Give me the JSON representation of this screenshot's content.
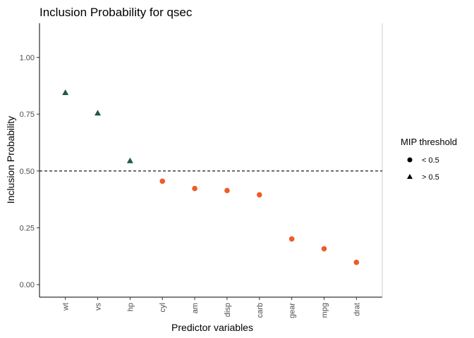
{
  "chart_data": {
    "type": "scatter",
    "title": "Inclusion Probability for qsec",
    "xlabel": "Predictor variables",
    "ylabel": "Inclusion Probability",
    "categories": [
      "wt",
      "vs",
      "hp",
      "cyl",
      "am",
      "disp",
      "carb",
      "gear",
      "mpg",
      "drat"
    ],
    "values": [
      0.845,
      0.755,
      0.545,
      0.455,
      0.423,
      0.414,
      0.395,
      0.201,
      0.158,
      0.098
    ],
    "groups": [
      "> 0.5",
      "> 0.5",
      "> 0.5",
      "< 0.5",
      "< 0.5",
      "< 0.5",
      "< 0.5",
      "< 0.5",
      "< 0.5",
      "< 0.5"
    ],
    "ylim": [
      -0.055,
      1.15
    ],
    "yticks": [
      0.0,
      0.25,
      0.5,
      0.75,
      1.0
    ],
    "ytick_labels": [
      "0.00",
      "0.25",
      "0.50",
      "0.75",
      "1.00"
    ],
    "threshold": 0.5,
    "grid": false,
    "legend": {
      "title": "MIP threshold",
      "position": "right",
      "entries": [
        {
          "label": "< 0.5",
          "shape": "circle"
        },
        {
          "label": "> 0.5",
          "shape": "triangle"
        }
      ]
    },
    "colors": {
      "< 0.5": "#f05a28",
      "> 0.5": "#1e5a44"
    }
  }
}
